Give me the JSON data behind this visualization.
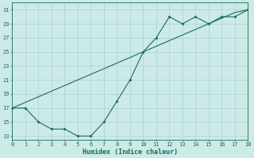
{
  "xlabel": "Humidex (Indice chaleur)",
  "bg_color": "#cceae7",
  "line_color": "#1a6b5a",
  "grid_color": "#aad4d0",
  "line1_x": [
    0,
    1,
    2,
    3,
    4,
    5,
    6,
    7,
    8,
    9,
    10,
    11,
    12,
    13,
    14,
    15,
    16,
    17,
    18
  ],
  "line1_y": [
    17,
    17.8,
    18.6,
    19.4,
    20.2,
    21.0,
    21.8,
    22.6,
    23.4,
    24.2,
    25.0,
    25.8,
    26.6,
    27.4,
    28.2,
    29.0,
    29.8,
    30.6,
    31
  ],
  "line2_x": [
    0,
    1,
    2,
    3,
    4,
    5,
    6,
    7,
    8,
    9,
    10,
    11,
    12,
    13,
    14,
    15,
    16,
    17,
    18
  ],
  "line2_y": [
    17,
    17,
    15,
    14,
    14,
    13,
    13,
    15,
    18,
    21,
    25,
    27,
    30,
    29,
    30,
    29,
    30,
    30,
    31
  ],
  "xlim": [
    0,
    18
  ],
  "ylim": [
    12.5,
    32
  ],
  "yticks": [
    13,
    15,
    17,
    19,
    21,
    23,
    25,
    27,
    29,
    31
  ],
  "xticks": [
    0,
    1,
    2,
    3,
    4,
    5,
    6,
    7,
    8,
    9,
    10,
    11,
    12,
    13,
    14,
    15,
    16,
    17,
    18
  ]
}
